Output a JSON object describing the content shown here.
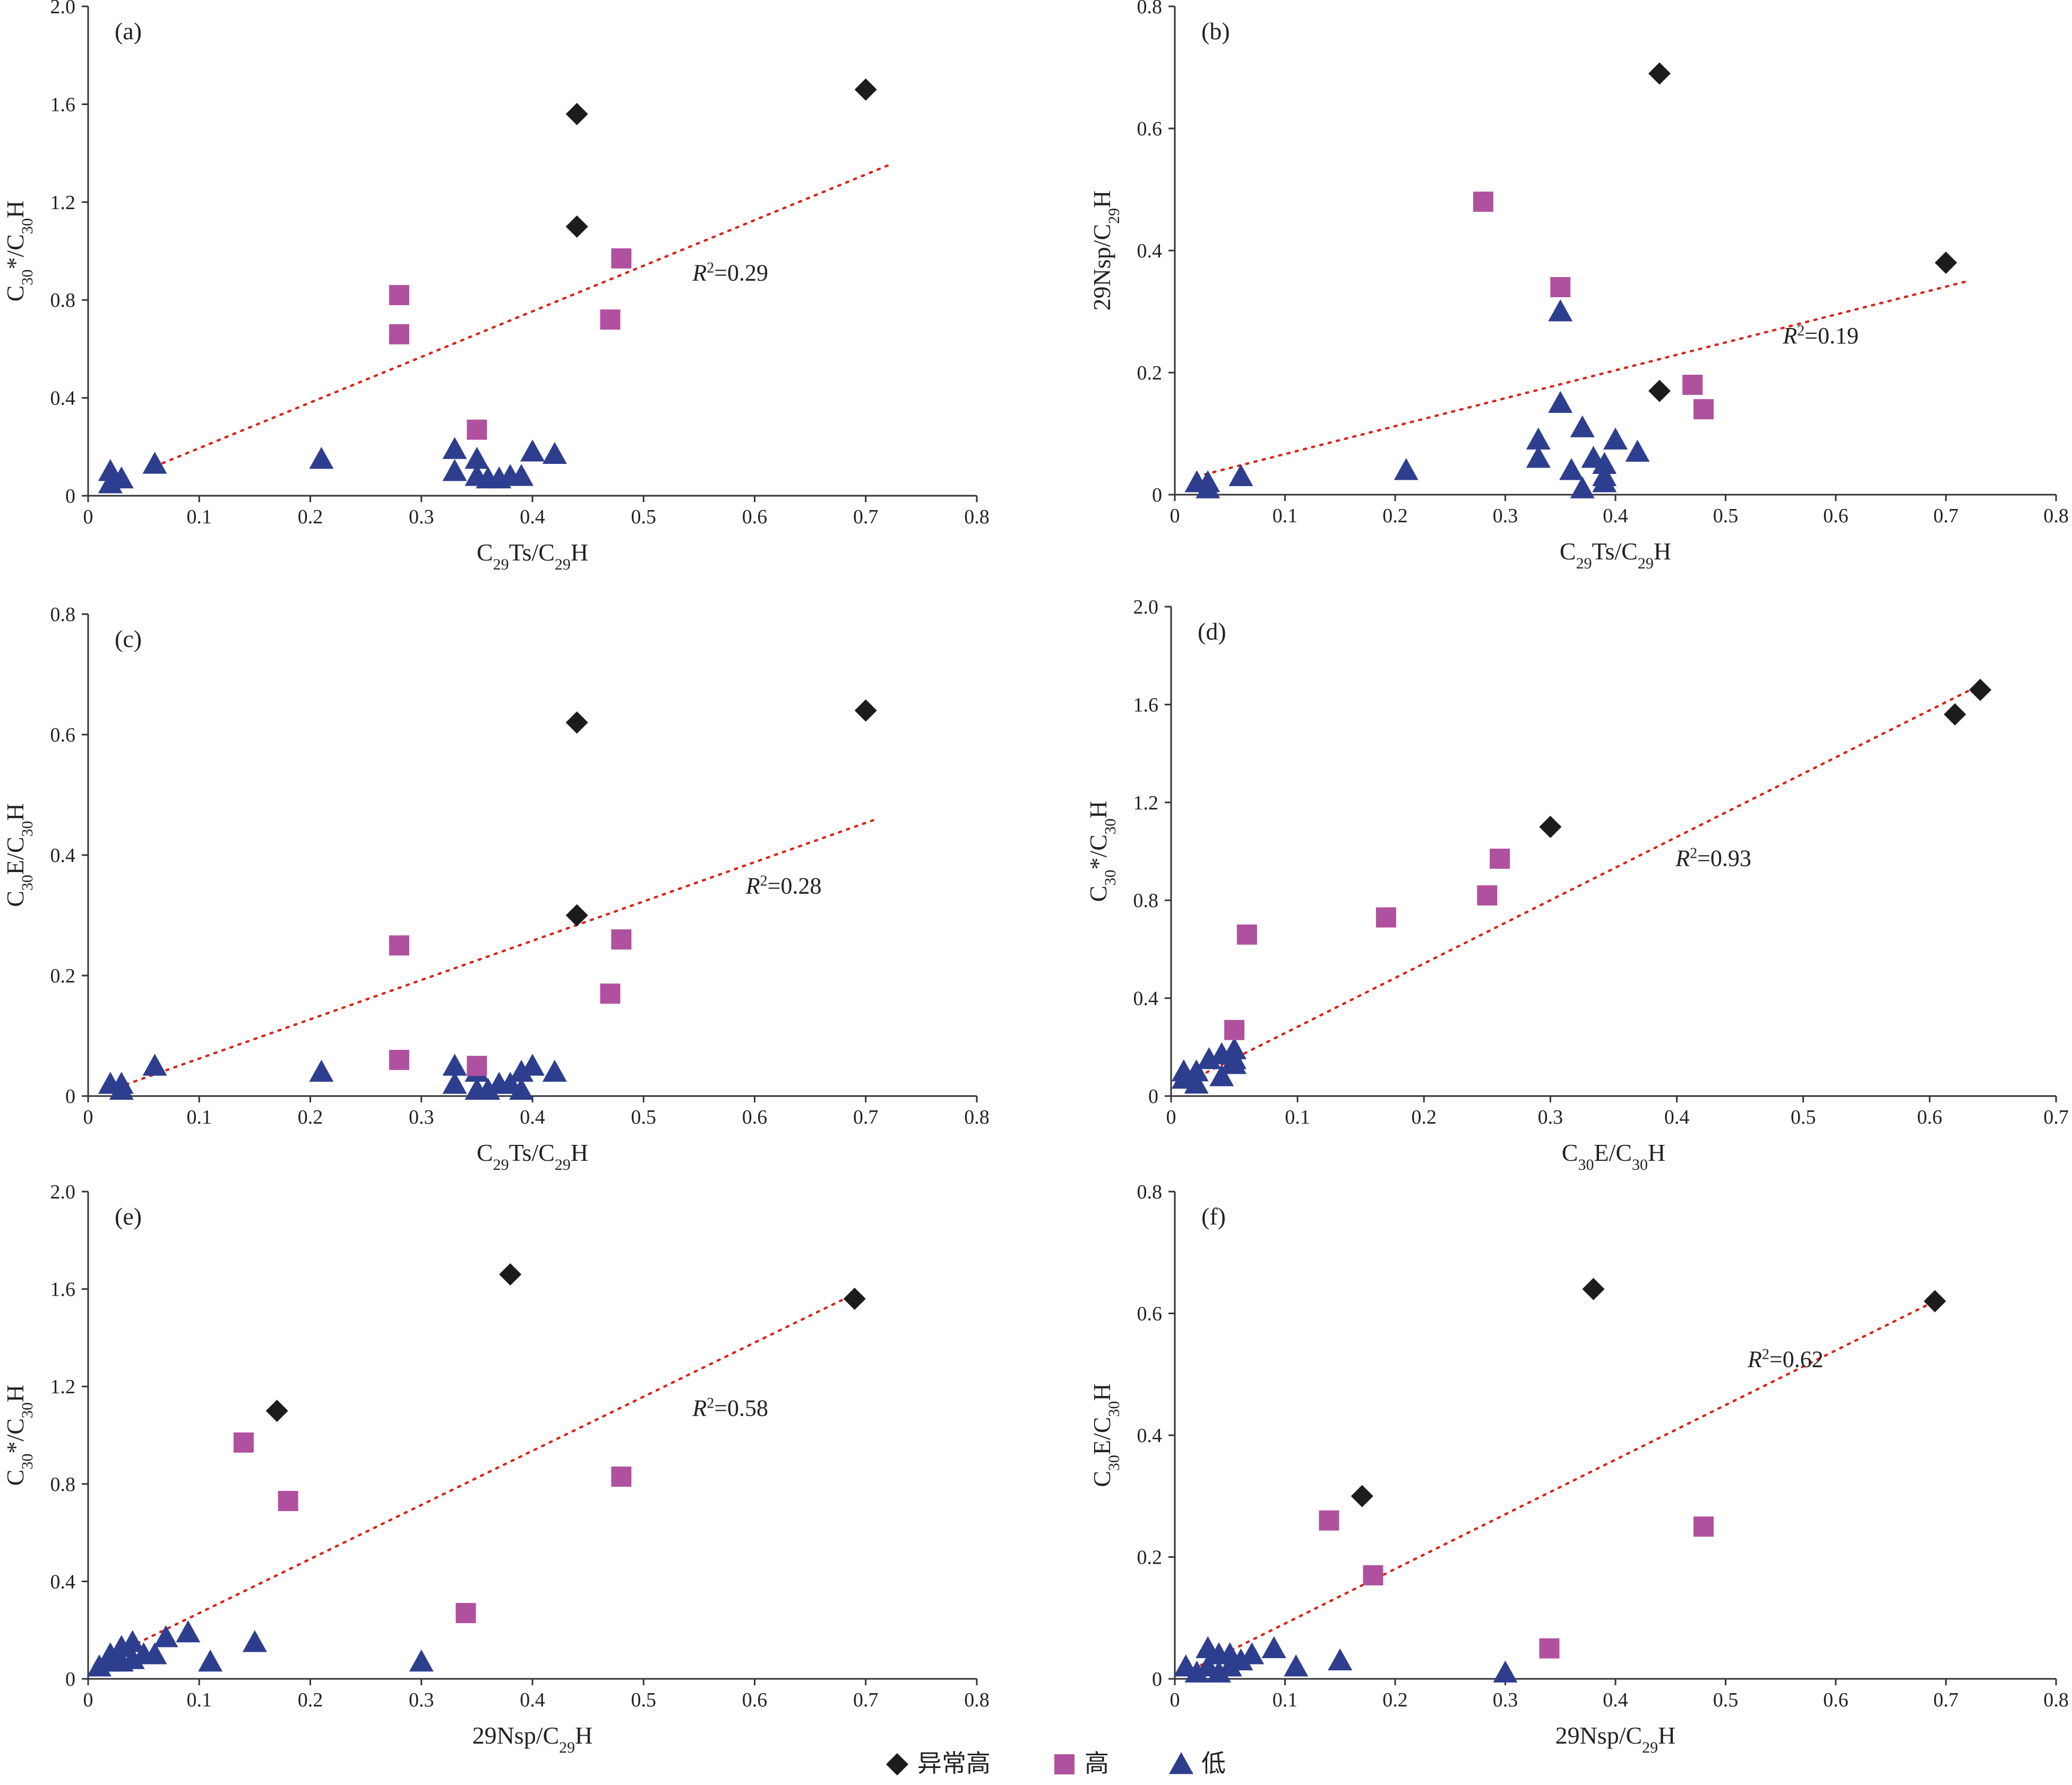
{
  "colors": {
    "abnormal_high": "#1c1c1c",
    "high": "#b0519f",
    "low": "#2e3e8f",
    "trendline": "#d9261c",
    "axis": "#333333"
  },
  "legend": {
    "placement": "bottom-center",
    "items": [
      {
        "key": "abnormal_high",
        "label": "异常高",
        "marker": "diamond"
      },
      {
        "key": "high",
        "label": "高",
        "marker": "square"
      },
      {
        "key": "low",
        "label": "低",
        "marker": "triangle"
      }
    ]
  },
  "chart_data": [
    {
      "panel": "(a)",
      "type": "scatter",
      "xlabel": {
        "main": "C",
        "sub": "29",
        "rest": "Ts/C",
        "sub2": "29",
        "rest2": "H"
      },
      "ylabel": {
        "main": "C",
        "sub": "30",
        "rest": "*/C",
        "sub2": "30",
        "rest2": "H"
      },
      "xlim": [
        0,
        0.8
      ],
      "ylim": [
        0,
        2.0
      ],
      "xticks": [
        "0",
        "0.1",
        "0.2",
        "0.3",
        "0.4",
        "0.5",
        "0.6",
        "0.7",
        "0.8"
      ],
      "yticks": [
        "0",
        "0.4",
        "0.8",
        "1.2",
        "1.6",
        "2.0"
      ],
      "r2_label": "=0.29",
      "trendline": [
        [
          0.06,
          0.12
        ],
        [
          0.72,
          1.35
        ]
      ],
      "series": [
        {
          "key": "abnormal_high",
          "points": [
            [
              0.44,
              1.56
            ],
            [
              0.7,
              1.66
            ],
            [
              0.44,
              1.1
            ]
          ]
        },
        {
          "key": "high",
          "points": [
            [
              0.28,
              0.82
            ],
            [
              0.28,
              0.66
            ],
            [
              0.48,
              0.97
            ],
            [
              0.47,
              0.72
            ],
            [
              0.35,
              0.27
            ]
          ]
        },
        {
          "key": "low",
          "points": [
            [
              0.02,
              0.1
            ],
            [
              0.02,
              0.05
            ],
            [
              0.03,
              0.07
            ],
            [
              0.06,
              0.13
            ],
            [
              0.21,
              0.15
            ],
            [
              0.33,
              0.19
            ],
            [
              0.33,
              0.1
            ],
            [
              0.35,
              0.15
            ],
            [
              0.35,
              0.08
            ],
            [
              0.36,
              0.07
            ],
            [
              0.37,
              0.07
            ],
            [
              0.38,
              0.08
            ],
            [
              0.39,
              0.08
            ],
            [
              0.4,
              0.18
            ],
            [
              0.42,
              0.17
            ]
          ]
        }
      ]
    },
    {
      "panel": "(b)",
      "type": "scatter",
      "xlabel": {
        "main": "C",
        "sub": "29",
        "rest": "Ts/C",
        "sub2": "29",
        "rest2": "H"
      },
      "ylabel": {
        "main": "29Nsp/C",
        "sub": "29",
        "rest": "H",
        "sub2": "",
        "rest2": ""
      },
      "xlim": [
        0,
        0.8
      ],
      "ylim": [
        0,
        0.8
      ],
      "xticks": [
        "0",
        "0.1",
        "0.2",
        "0.3",
        "0.4",
        "0.5",
        "0.6",
        "0.7",
        "0.8"
      ],
      "yticks": [
        "0",
        "0.2",
        "0.4",
        "0.6",
        "0.8"
      ],
      "r2_label": "=0.19",
      "trendline": [
        [
          0.02,
          0.03
        ],
        [
          0.72,
          0.35
        ]
      ],
      "series": [
        {
          "key": "abnormal_high",
          "points": [
            [
              0.44,
              0.69
            ],
            [
              0.7,
              0.38
            ],
            [
              0.44,
              0.17
            ]
          ]
        },
        {
          "key": "high",
          "points": [
            [
              0.28,
              0.48
            ],
            [
              0.35,
              0.34
            ],
            [
              0.47,
              0.18
            ],
            [
              0.48,
              0.14
            ]
          ]
        },
        {
          "key": "low",
          "points": [
            [
              0.02,
              0.02
            ],
            [
              0.03,
              0.01
            ],
            [
              0.03,
              0.02
            ],
            [
              0.06,
              0.03
            ],
            [
              0.21,
              0.04
            ],
            [
              0.33,
              0.09
            ],
            [
              0.33,
              0.06
            ],
            [
              0.35,
              0.3
            ],
            [
              0.35,
              0.15
            ],
            [
              0.36,
              0.04
            ],
            [
              0.37,
              0.11
            ],
            [
              0.37,
              0.01
            ],
            [
              0.38,
              0.06
            ],
            [
              0.39,
              0.05
            ],
            [
              0.39,
              0.03
            ],
            [
              0.39,
              0.02
            ],
            [
              0.4,
              0.09
            ],
            [
              0.42,
              0.07
            ]
          ]
        }
      ]
    },
    {
      "panel": "(c)",
      "type": "scatter",
      "xlabel": {
        "main": "C",
        "sub": "29",
        "rest": "Ts/C",
        "sub2": "29",
        "rest2": "H"
      },
      "ylabel": {
        "main": "C",
        "sub": "30",
        "rest": "E/C",
        "sub2": "30",
        "rest2": "H"
      },
      "xlim": [
        0,
        0.8
      ],
      "ylim": [
        0,
        0.8
      ],
      "xticks": [
        "0",
        "0.1",
        "0.2",
        "0.3",
        "0.4",
        "0.5",
        "0.6",
        "0.7",
        "0.8"
      ],
      "yticks": [
        "0",
        "0.2",
        "0.4",
        "0.6",
        "0.8"
      ],
      "r2_label": "=0.28",
      "trendline": [
        [
          0.02,
          0.01
        ],
        [
          0.71,
          0.46
        ]
      ],
      "series": [
        {
          "key": "abnormal_high",
          "points": [
            [
              0.44,
              0.62
            ],
            [
              0.7,
              0.64
            ],
            [
              0.44,
              0.3
            ]
          ]
        },
        {
          "key": "high",
          "points": [
            [
              0.28,
              0.25
            ],
            [
              0.48,
              0.26
            ],
            [
              0.47,
              0.17
            ],
            [
              0.28,
              0.06
            ],
            [
              0.35,
              0.05
            ]
          ]
        },
        {
          "key": "low",
          "points": [
            [
              0.02,
              0.02
            ],
            [
              0.03,
              0.01
            ],
            [
              0.03,
              0.02
            ],
            [
              0.06,
              0.05
            ],
            [
              0.21,
              0.04
            ],
            [
              0.33,
              0.05
            ],
            [
              0.33,
              0.02
            ],
            [
              0.35,
              0.04
            ],
            [
              0.35,
              0.01
            ],
            [
              0.36,
              0.01
            ],
            [
              0.37,
              0.02
            ],
            [
              0.38,
              0.02
            ],
            [
              0.39,
              0.04
            ],
            [
              0.39,
              0.01
            ],
            [
              0.4,
              0.05
            ],
            [
              0.42,
              0.04
            ]
          ]
        }
      ]
    },
    {
      "panel": "(d)",
      "type": "scatter",
      "xlabel": {
        "main": "C",
        "sub": "30",
        "rest": "E/C",
        "sub2": "30",
        "rest2": "H"
      },
      "ylabel": {
        "main": "C",
        "sub": "30",
        "rest": "*/C",
        "sub2": "30",
        "rest2": "H"
      },
      "xlim": [
        0,
        0.7
      ],
      "ylim": [
        0,
        2.0
      ],
      "xticks": [
        "0",
        "0.1",
        "0.2",
        "0.3",
        "0.4",
        "0.5",
        "0.6",
        "0.7"
      ],
      "yticks": [
        "0",
        "0.4",
        "0.8",
        "1.2",
        "1.6",
        "2.0"
      ],
      "r2_label": "=0.93",
      "trendline": [
        [
          0.01,
          0.05
        ],
        [
          0.64,
          1.68
        ]
      ],
      "series": [
        {
          "key": "abnormal_high",
          "points": [
            [
              0.64,
              1.66
            ],
            [
              0.62,
              1.56
            ],
            [
              0.3,
              1.1
            ]
          ]
        },
        {
          "key": "high",
          "points": [
            [
              0.26,
              0.97
            ],
            [
              0.25,
              0.82
            ],
            [
              0.17,
              0.73
            ],
            [
              0.06,
              0.66
            ],
            [
              0.05,
              0.27
            ]
          ]
        },
        {
          "key": "low",
          "points": [
            [
              0.01,
              0.1
            ],
            [
              0.01,
              0.07
            ],
            [
              0.02,
              0.05
            ],
            [
              0.02,
              0.1
            ],
            [
              0.03,
              0.15
            ],
            [
              0.04,
              0.17
            ],
            [
              0.04,
              0.08
            ],
            [
              0.05,
              0.19
            ],
            [
              0.05,
              0.15
            ],
            [
              0.05,
              0.13
            ]
          ]
        }
      ]
    },
    {
      "panel": "(e)",
      "type": "scatter",
      "xlabel": {
        "main": "29Nsp/C",
        "sub": "29",
        "rest": "H",
        "sub2": "",
        "rest2": ""
      },
      "ylabel": {
        "main": "C",
        "sub": "30",
        "rest": "*/C",
        "sub2": "30",
        "rest2": "H"
      },
      "xlim": [
        0,
        0.8
      ],
      "ylim": [
        0,
        2.0
      ],
      "xticks": [
        "0",
        "0.1",
        "0.2",
        "0.3",
        "0.4",
        "0.5",
        "0.6",
        "0.7",
        "0.8"
      ],
      "yticks": [
        "0",
        "0.4",
        "0.8",
        "1.2",
        "1.6",
        "2.0"
      ],
      "r2_label": "=0.58",
      "trendline": [
        [
          0.01,
          0.07
        ],
        [
          0.69,
          1.58
        ]
      ],
      "series": [
        {
          "key": "abnormal_high",
          "points": [
            [
              0.38,
              1.66
            ],
            [
              0.69,
              1.56
            ],
            [
              0.17,
              1.1
            ]
          ]
        },
        {
          "key": "high",
          "points": [
            [
              0.14,
              0.97
            ],
            [
              0.18,
              0.73
            ],
            [
              0.48,
              0.83
            ],
            [
              0.34,
              0.27
            ]
          ]
        },
        {
          "key": "low",
          "points": [
            [
              0.01,
              0.05
            ],
            [
              0.02,
              0.07
            ],
            [
              0.02,
              0.1
            ],
            [
              0.03,
              0.07
            ],
            [
              0.03,
              0.13
            ],
            [
              0.04,
              0.15
            ],
            [
              0.04,
              0.08
            ],
            [
              0.05,
              0.1
            ],
            [
              0.06,
              0.1
            ],
            [
              0.07,
              0.17
            ],
            [
              0.09,
              0.19
            ],
            [
              0.11,
              0.07
            ],
            [
              0.15,
              0.15
            ],
            [
              0.3,
              0.07
            ]
          ]
        }
      ]
    },
    {
      "panel": "(f)",
      "type": "scatter",
      "xlabel": {
        "main": "29Nsp/C",
        "sub": "29",
        "rest": "H",
        "sub2": "",
        "rest2": ""
      },
      "ylabel": {
        "main": "C",
        "sub": "30",
        "rest": "E/C",
        "sub2": "30",
        "rest2": "H"
      },
      "xlim": [
        0,
        0.8
      ],
      "ylim": [
        0,
        0.8
      ],
      "xticks": [
        "0",
        "0.1",
        "0.2",
        "0.3",
        "0.4",
        "0.5",
        "0.6",
        "0.7",
        "0.8"
      ],
      "yticks": [
        "0",
        "0.2",
        "0.4",
        "0.6",
        "0.8"
      ],
      "r2_label": "=0.62",
      "trendline": [
        [
          0.01,
          0.01
        ],
        [
          0.69,
          0.62
        ]
      ],
      "series": [
        {
          "key": "abnormal_high",
          "points": [
            [
              0.38,
              0.64
            ],
            [
              0.69,
              0.62
            ],
            [
              0.17,
              0.3
            ]
          ]
        },
        {
          "key": "high",
          "points": [
            [
              0.14,
              0.26
            ],
            [
              0.18,
              0.17
            ],
            [
              0.48,
              0.25
            ],
            [
              0.34,
              0.05
            ]
          ]
        },
        {
          "key": "low",
          "points": [
            [
              0.01,
              0.02
            ],
            [
              0.02,
              0.01
            ],
            [
              0.03,
              0.05
            ],
            [
              0.03,
              0.02
            ],
            [
              0.04,
              0.04
            ],
            [
              0.04,
              0.01
            ],
            [
              0.05,
              0.04
            ],
            [
              0.05,
              0.02
            ],
            [
              0.06,
              0.03
            ],
            [
              0.07,
              0.04
            ],
            [
              0.09,
              0.05
            ],
            [
              0.11,
              0.02
            ],
            [
              0.15,
              0.03
            ],
            [
              0.3,
              0.01
            ]
          ]
        }
      ]
    }
  ]
}
